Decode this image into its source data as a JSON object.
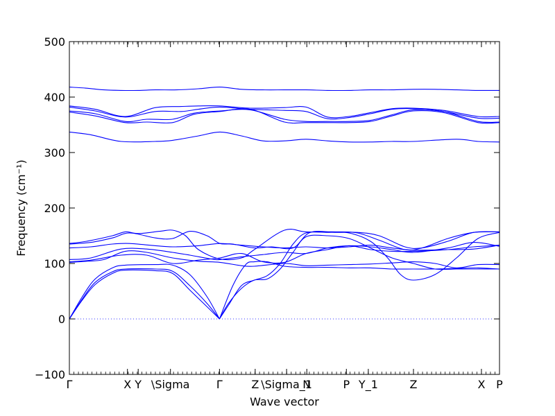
{
  "chart_data": {
    "type": "line",
    "title": "",
    "xlabel": "Wave vector",
    "ylabel": "Frequency (cm⁻¹)",
    "ylim": [
      -100,
      500
    ],
    "yticks": [
      -100,
      0,
      100,
      200,
      300,
      400,
      500
    ],
    "xlim": [
      0,
      1
    ],
    "grid": false,
    "legend": "none",
    "line_color": "#0000ff",
    "zero_line_color": "#3333ff",
    "xticks": [
      {
        "label": "Γ",
        "x": 0.0
      },
      {
        "label": "X",
        "x": 0.135
      },
      {
        "label": "Y",
        "x": 0.16
      },
      {
        "label": "\\Sigma",
        "x": 0.235
      },
      {
        "label": "Γ",
        "x": 0.349
      },
      {
        "label": "Z",
        "x": 0.432
      },
      {
        "label": "\\Sigma_1",
        "x": 0.505
      },
      {
        "label": "N",
        "x": 0.552
      },
      {
        "label": "P",
        "x": 0.644
      },
      {
        "label": "Y_1",
        "x": 0.695
      },
      {
        "label": "Z",
        "x": 0.8
      },
      {
        "label": "X",
        "x": 0.958
      },
      {
        "label": "P",
        "x": 1.0
      }
    ],
    "series": [
      {
        "x": [
          0,
          0.04,
          0.08,
          0.12,
          0.16,
          0.2,
          0.25,
          0.3,
          0.35,
          0.4,
          0.45,
          0.5,
          0.55,
          0.6,
          0.65,
          0.7,
          0.75,
          0.8,
          0.85,
          0.9,
          0.95,
          1.0
        ],
        "y": [
          418,
          416,
          413,
          412,
          412,
          413,
          413,
          415,
          418,
          414,
          413,
          413,
          413,
          412,
          412,
          413,
          413,
          414,
          414,
          413,
          412,
          412
        ]
      },
      {
        "x": [
          0,
          0.06,
          0.13,
          0.2,
          0.26,
          0.3,
          0.35,
          0.42,
          0.5,
          0.55,
          0.6,
          0.65,
          0.7,
          0.75,
          0.8,
          0.87,
          0.95,
          1.0
        ],
        "y": [
          384,
          378,
          365,
          381,
          383,
          384,
          384,
          380,
          381,
          382,
          364,
          365,
          372,
          379,
          380,
          376,
          365,
          365
        ]
      },
      {
        "x": [
          0,
          0.06,
          0.13,
          0.2,
          0.26,
          0.3,
          0.35,
          0.42,
          0.5,
          0.55,
          0.6,
          0.65,
          0.7,
          0.75,
          0.8,
          0.87,
          0.95,
          1.0
        ],
        "y": [
          382,
          375,
          364,
          374,
          374,
          378,
          382,
          378,
          376,
          374,
          361,
          363,
          370,
          378,
          379,
          374,
          362,
          362
        ]
      },
      {
        "x": [
          0,
          0.06,
          0.13,
          0.18,
          0.24,
          0.29,
          0.35,
          0.42,
          0.5,
          0.55,
          0.6,
          0.65,
          0.7,
          0.75,
          0.8,
          0.87,
          0.95,
          1.0
        ],
        "y": [
          375,
          370,
          356,
          360,
          360,
          371,
          375,
          377,
          360,
          356,
          356,
          356,
          358,
          368,
          377,
          374,
          356,
          355
        ]
      },
      {
        "x": [
          0,
          0.06,
          0.13,
          0.18,
          0.24,
          0.29,
          0.35,
          0.42,
          0.5,
          0.55,
          0.6,
          0.65,
          0.7,
          0.75,
          0.8,
          0.87,
          0.95,
          1.0
        ],
        "y": [
          373,
          366,
          354,
          355,
          354,
          369,
          374,
          378,
          355,
          354,
          354,
          354,
          356,
          366,
          375,
          372,
          354,
          354
        ]
      },
      {
        "x": [
          0,
          0.05,
          0.12,
          0.2,
          0.24,
          0.3,
          0.35,
          0.4,
          0.45,
          0.5,
          0.55,
          0.6,
          0.65,
          0.7,
          0.75,
          0.8,
          0.9,
          0.95,
          1.0
        ],
        "y": [
          337,
          332,
          320,
          320,
          322,
          330,
          337,
          330,
          321,
          321,
          324,
          321,
          319,
          319,
          320,
          320,
          324,
          320,
          319
        ]
      },
      {
        "x": [
          0,
          0.04,
          0.1,
          0.13,
          0.16,
          0.21,
          0.24,
          0.27,
          0.3,
          0.35,
          0.4,
          0.43,
          0.5,
          0.55,
          0.62,
          0.67,
          0.72,
          0.78,
          0.82,
          0.88,
          0.94,
          1.0
        ],
        "y": [
          136,
          140,
          150,
          157,
          154,
          158,
          160,
          150,
          125,
          108,
          110,
          125,
          160,
          157,
          157,
          155,
          142,
          125,
          128,
          145,
          156,
          157
        ]
      },
      {
        "x": [
          0,
          0.05,
          0.1,
          0.14,
          0.2,
          0.24,
          0.28,
          0.32,
          0.35,
          0.38,
          0.43,
          0.47,
          0.52,
          0.56,
          0.62,
          0.67,
          0.72,
          0.78,
          0.82,
          0.88,
          0.94,
          1.0
        ],
        "y": [
          135,
          138,
          146,
          155,
          146,
          145,
          158,
          150,
          136,
          135,
          128,
          130,
          128,
          156,
          156,
          156,
          150,
          130,
          128,
          140,
          156,
          157
        ]
      },
      {
        "x": [
          0,
          0.05,
          0.1,
          0.14,
          0.2,
          0.24,
          0.3,
          0.35,
          0.4,
          0.45,
          0.5,
          0.55,
          0.6,
          0.65,
          0.7,
          0.75,
          0.8,
          0.88,
          0.94,
          1.0
        ],
        "y": [
          128,
          130,
          135,
          136,
          132,
          130,
          132,
          136,
          133,
          130,
          128,
          130,
          128,
          130,
          133,
          128,
          124,
          125,
          126,
          133
        ]
      },
      {
        "x": [
          0,
          0.05,
          0.12,
          0.18,
          0.24,
          0.28,
          0.33,
          0.35,
          0.4,
          0.45,
          0.5,
          0.55,
          0.6,
          0.65,
          0.7,
          0.75,
          0.8,
          0.88,
          0.94,
          1.0
        ],
        "y": [
          107,
          110,
          126,
          126,
          120,
          115,
          108,
          107,
          112,
          116,
          120,
          118,
          128,
          132,
          130,
          125,
          120,
          128,
          138,
          131
        ]
      },
      {
        "x": [
          0,
          0.05,
          0.12,
          0.18,
          0.24,
          0.3,
          0.35,
          0.4,
          0.45,
          0.5,
          0.55,
          0.6,
          0.65,
          0.7,
          0.75,
          0.8,
          0.88,
          0.94,
          1.0
        ],
        "y": [
          103,
          106,
          115,
          115,
          100,
          106,
          110,
          118,
          103,
          102,
          118,
          125,
          132,
          125,
          122,
          122,
          125,
          130,
          133
        ]
      },
      {
        "x": [
          0,
          0.04,
          0.08,
          0.13,
          0.18,
          0.24,
          0.3,
          0.35,
          0.4,
          0.43,
          0.5,
          0.55,
          0.6,
          0.65,
          0.7,
          0.75,
          0.8,
          0.85,
          0.9,
          0.95,
          1.0
        ],
        "y": [
          102,
          104,
          107,
          122,
          120,
          110,
          104,
          102,
          96,
          95,
          100,
          96,
          97,
          98,
          99,
          101,
          103,
          100,
          92,
          98,
          98
        ]
      },
      {
        "x": [
          0,
          0.03,
          0.06,
          0.1,
          0.13,
          0.2,
          0.24,
          0.28,
          0.32,
          0.349
        ],
        "y": [
          0,
          40,
          72,
          92,
          97,
          98,
          97,
          80,
          40,
          0
        ]
      },
      {
        "x": [
          0,
          0.03,
          0.06,
          0.1,
          0.13,
          0.2,
          0.24,
          0.28,
          0.32,
          0.349
        ],
        "y": [
          0,
          36,
          66,
          85,
          90,
          90,
          86,
          60,
          28,
          0
        ]
      },
      {
        "x": [
          0,
          0.03,
          0.06,
          0.1,
          0.13,
          0.2,
          0.24,
          0.28,
          0.32,
          0.349
        ],
        "y": [
          0,
          34,
          62,
          82,
          88,
          87,
          82,
          52,
          22,
          0
        ]
      },
      {
        "x": [
          0.349,
          0.38,
          0.41,
          0.43,
          0.46,
          0.5,
          0.55,
          0.6,
          0.65,
          0.7,
          0.75,
          0.8,
          0.85,
          0.9,
          0.95,
          1.0
        ],
        "y": [
          0,
          60,
          98,
          103,
          103,
          95,
          93,
          93,
          92,
          92,
          90,
          90,
          90,
          91,
          92,
          90
        ]
      },
      {
        "x": [
          0.349,
          0.37,
          0.4,
          0.43,
          0.46,
          0.49,
          0.52,
          0.55,
          0.6,
          0.65,
          0.7,
          0.74,
          0.77,
          0.8,
          0.85,
          0.9,
          0.95,
          1.0
        ],
        "y": [
          0,
          25,
          60,
          70,
          78,
          100,
          135,
          155,
          156,
          155,
          140,
          110,
          80,
          70,
          80,
          110,
          145,
          156
        ]
      },
      {
        "x": [
          0.349,
          0.37,
          0.4,
          0.43,
          0.46,
          0.49,
          0.52,
          0.55,
          0.6,
          0.65,
          0.7,
          0.75,
          0.8,
          0.85,
          0.9,
          0.95,
          1.0
        ],
        "y": [
          0,
          28,
          55,
          70,
          72,
          90,
          120,
          148,
          150,
          145,
          128,
          110,
          100,
          90,
          90,
          90,
          90
        ]
      }
    ]
  }
}
